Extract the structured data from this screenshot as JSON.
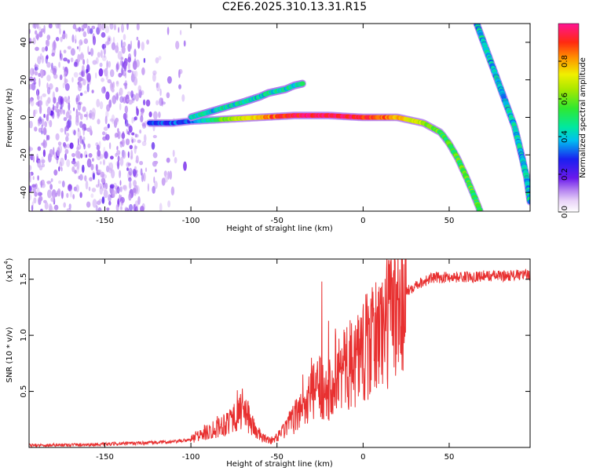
{
  "title": "C2E6.2025.310.13.31.R15",
  "chart_data": [
    {
      "type": "heatmap",
      "name": "spectrogram",
      "xlabel": "Height of straight line (km)",
      "ylabel": "Frequency (Hz)",
      "xlim": [
        -194,
        97
      ],
      "ylim": [
        -50,
        50
      ],
      "xticks": [
        -150,
        -100,
        -50,
        0,
        50
      ],
      "xtick_labels": [
        "-150",
        "-100",
        "-50",
        "0",
        "50"
      ],
      "yticks": [
        -40,
        -20,
        0,
        20,
        40
      ],
      "ytick_labels": [
        "-40",
        "-20",
        "0",
        "20",
        "40"
      ],
      "colorbar": {
        "label": "Normalized spectral amplitude",
        "range": [
          0,
          1
        ],
        "ticks": [
          0.0,
          0.2,
          0.4,
          0.6,
          0.8
        ],
        "tick_labels": [
          "0.0",
          "0.2",
          "0.4",
          "0.6",
          "0.8"
        ]
      },
      "traces": [
        {
          "name": "main-echo-trace",
          "points": [
            [
              -124,
              -3
            ],
            [
              -110,
              -3
            ],
            [
              -100,
              -2
            ],
            [
              -80,
              -1
            ],
            [
              -60,
              0
            ],
            [
              -40,
              1
            ],
            [
              -20,
              1
            ],
            [
              0,
              0
            ],
            [
              20,
              0
            ],
            [
              35,
              -3
            ],
            [
              45,
              -8
            ],
            [
              50,
              -14
            ],
            [
              55,
              -22
            ],
            [
              60,
              -32
            ],
            [
              65,
              -43
            ],
            [
              68,
              -50
            ]
          ],
          "peak_amplitude": 0.95
        },
        {
          "name": "upper-branch-trace",
          "points": [
            [
              -100,
              0
            ],
            [
              -85,
              4
            ],
            [
              -70,
              8
            ],
            [
              -60,
              11
            ],
            [
              -55,
              13
            ],
            [
              -45,
              15
            ],
            [
              -40,
              17
            ],
            [
              -35,
              18
            ]
          ],
          "peak_amplitude": 0.45
        },
        {
          "name": "steep-descending-trace",
          "points": [
            [
              66,
              50
            ],
            [
              72,
              35
            ],
            [
              78,
              20
            ],
            [
              84,
              5
            ],
            [
              88,
              -5
            ],
            [
              92,
              -20
            ],
            [
              95,
              -32
            ],
            [
              97,
              -45
            ]
          ],
          "peak_amplitude": 0.55
        }
      ],
      "noise_region": [
        -194,
        -103
      ]
    },
    {
      "type": "line",
      "name": "snr",
      "xlabel": "Height of straight line (km)",
      "ylabel": "SNR (10 * v/v)",
      "scale_label": "(x10",
      "scale_exponent": "4",
      "xlim": [
        -194,
        97
      ],
      "ylim": [
        0,
        16800
      ],
      "xticks": [
        -150,
        -100,
        -50,
        0,
        50
      ],
      "xtick_labels": [
        "-150",
        "-100",
        "-50",
        "0",
        "50"
      ],
      "yticks": [
        5000,
        10000,
        15000
      ],
      "ytick_labels": [
        "0.5",
        "1.0",
        "1.5"
      ],
      "color": "#e83030",
      "envelope": {
        "x": [
          -194,
          -150,
          -110,
          -100,
          -95,
          -85,
          -80,
          -75,
          -70,
          -65,
          -62,
          -58,
          -52,
          -46,
          -40,
          -35,
          -30,
          -25,
          -20,
          -15,
          -10,
          -5,
          0,
          5,
          10,
          15,
          20,
          25,
          30,
          40,
          50,
          60,
          70,
          80,
          97
        ],
        "y": [
          180,
          280,
          500,
          700,
          1100,
          1800,
          2200,
          2800,
          3400,
          2300,
          1400,
          800,
          600,
          1500,
          2600,
          3600,
          4600,
          5600,
          5200,
          6800,
          6900,
          7800,
          8700,
          9200,
          10500,
          11500,
          12800,
          13800,
          14500,
          15100,
          15200,
          15200,
          15300,
          15300,
          15400
        ]
      },
      "spikes": [
        [
          -73,
          5100
        ],
        [
          -24,
          14800
        ],
        [
          -20,
          11300
        ],
        [
          -11,
          10500
        ],
        [
          -35,
          6500
        ],
        [
          -30,
          8000
        ],
        [
          -3,
          11800
        ],
        [
          6,
          11700
        ],
        [
          -16,
          10600
        ],
        [
          -8,
          9500
        ],
        [
          12,
          12000
        ],
        [
          20,
          13300
        ]
      ]
    }
  ]
}
